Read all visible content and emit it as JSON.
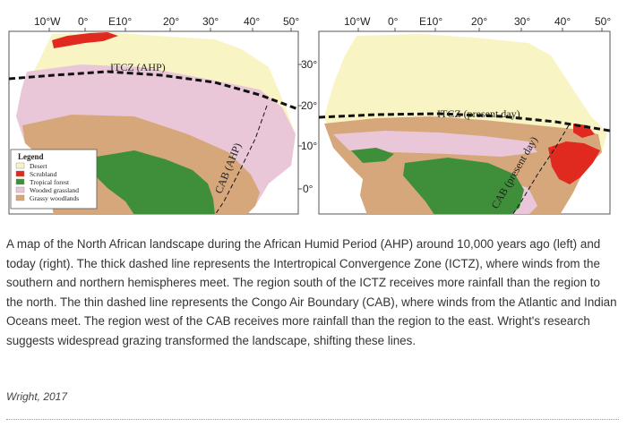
{
  "maps": {
    "lon_labels": [
      "10°W",
      "0°",
      "E10°",
      "20°",
      "30°",
      "40°",
      "50°"
    ],
    "lat_labels": [
      "30°",
      "20°",
      "10°",
      "0°"
    ],
    "left": {
      "itcz_label": "ITCZ (AHP)",
      "cab_label": "CAB (AHP)"
    },
    "right": {
      "itcz_label": "ITCZ (present day)",
      "cab_label": "CAB (present day)"
    },
    "legend": {
      "title": "Legend",
      "items": [
        {
          "label": "Desert",
          "color": "#f9f4c4"
        },
        {
          "label": "Scrubland",
          "color": "#e02a1f"
        },
        {
          "label": "Tropical forest",
          "color": "#3f8f3a"
        },
        {
          "label": "Wooded grassland",
          "color": "#e9c7d8"
        },
        {
          "label": "Grassy woodlands",
          "color": "#d7a77c"
        }
      ]
    }
  },
  "caption": "A map of the North African landscape during the African Humid Period (AHP) around 10,000 years ago (left) and today (right). The thick dashed line represents the Intertropical Convergence Zone (ICTZ), where winds from the southern and northern hemispheres meet. The region south of the ICTZ receives more rainfall than the region to the north. The thin dashed line represents the Congo Air Boundary (CAB), where winds from the Atlantic and Indian Oceans meet. The region west of the CAB receives more rainfall than the region to the east. Wright's research suggests widespread grazing transformed the landscape, shifting these lines.",
  "credit": "Wright, 2017"
}
